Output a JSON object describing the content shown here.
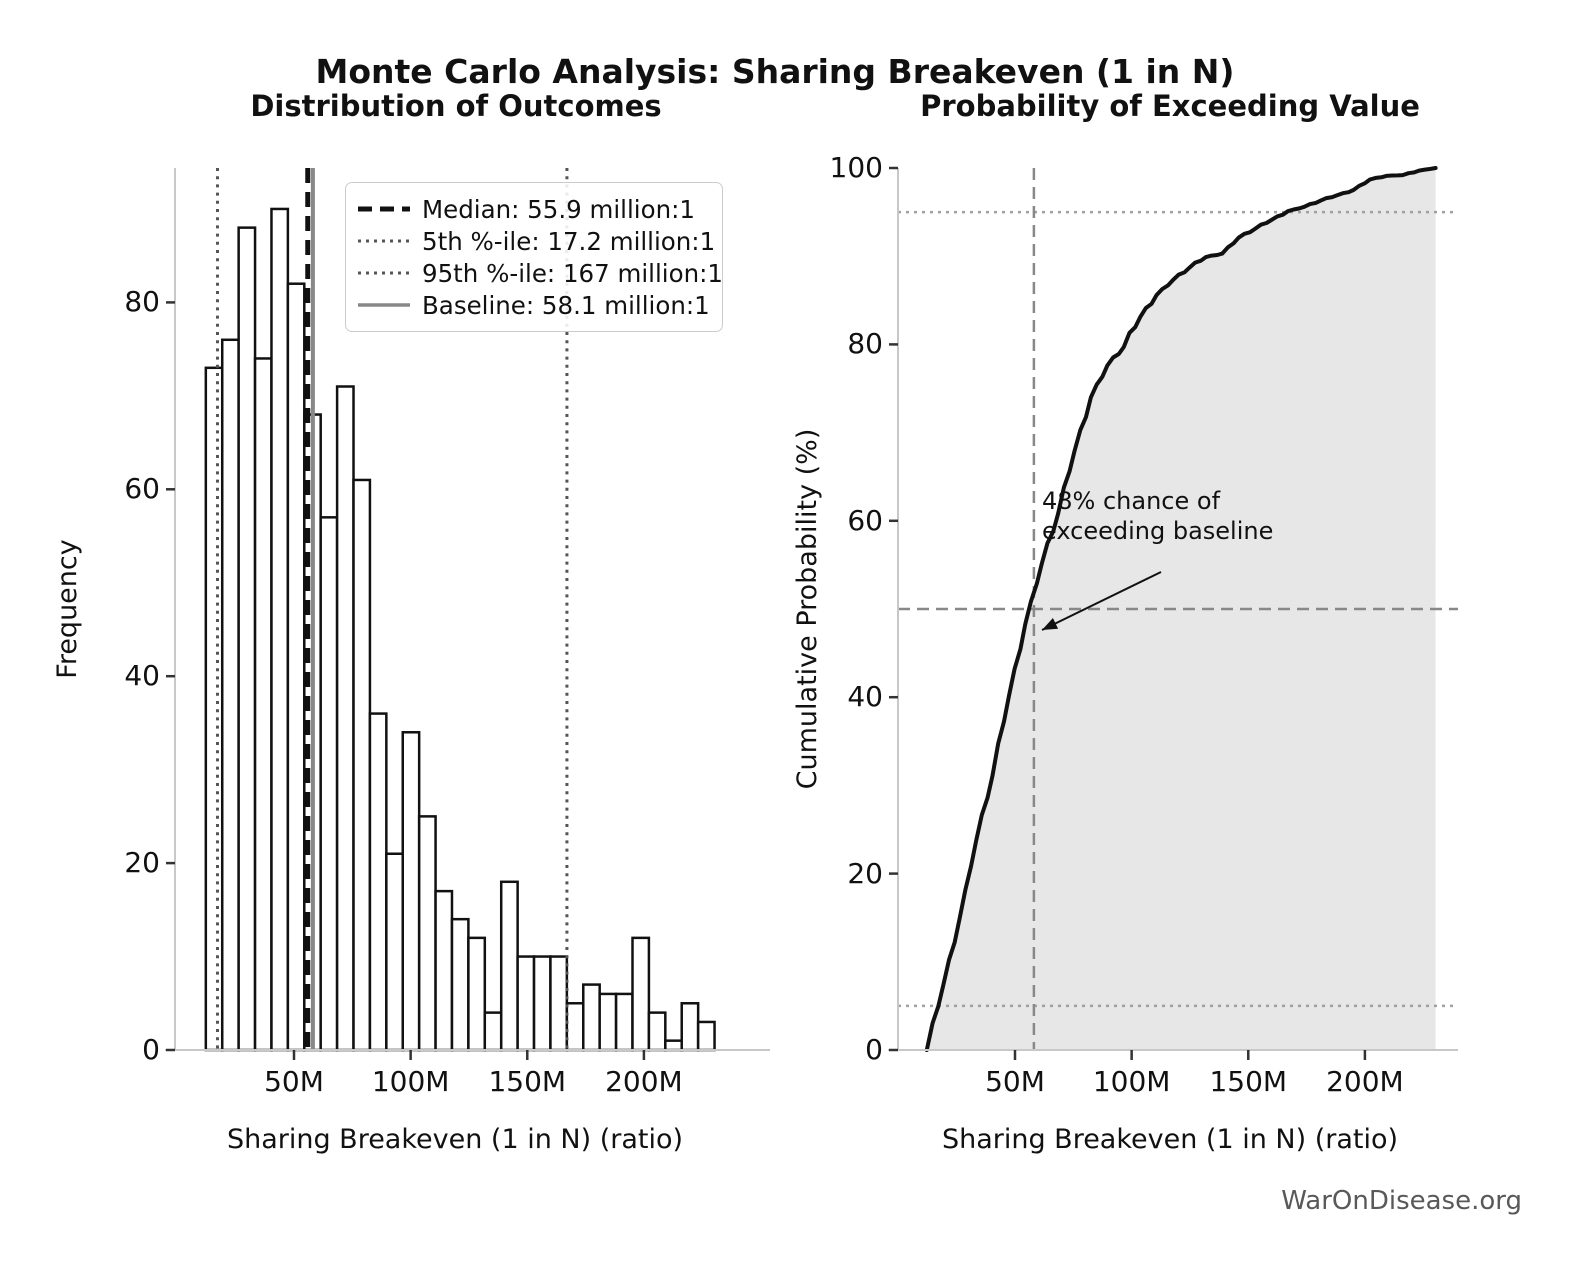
{
  "figure": {
    "title": "Monte Carlo Analysis: Sharing Breakeven (1 in N)",
    "watermark": "WarOnDisease.org"
  },
  "colors": {
    "background": "#ffffff",
    "bar_fill": "#ffffff",
    "bar_edge": "#111111",
    "median_line": "#111111",
    "percentile_line": "#555555",
    "baseline_line": "#888888",
    "cdf_line": "#111111",
    "cdf_fill": "#e7e7e7",
    "crosshair_dashed": "#888888",
    "dotted_reference": "#a0a0a0",
    "spine": "#c8c8c8",
    "tick": "#333333",
    "watermark_text": "#595959"
  },
  "chart_data": [
    {
      "type": "bar",
      "variant": "histogram",
      "title": "Distribution of Outcomes",
      "xlabel": "Sharing Breakeven (1 in N) (ratio)",
      "ylabel": "Frequency",
      "n_samples": 1000,
      "bin_start_millions": 12.2,
      "bin_width_millions": 7.035,
      "counts": [
        73,
        76,
        88,
        74,
        90,
        82,
        68,
        57,
        71,
        61,
        36,
        21,
        34,
        25,
        17,
        14,
        12,
        4,
        18,
        10,
        10,
        10,
        5,
        7,
        6,
        6,
        12,
        4,
        1,
        5,
        3
      ],
      "xticks": [
        {
          "value": 50,
          "label": "50M"
        },
        {
          "value": 100,
          "label": "100M"
        },
        {
          "value": 150,
          "label": "150M"
        },
        {
          "value": 200,
          "label": "200M"
        }
      ],
      "yticks": [
        0,
        20,
        40,
        60,
        80
      ],
      "xlim_millions": [
        -1,
        254
      ],
      "ylim": [
        0,
        94.5
      ],
      "grid": false,
      "reference_lines": {
        "median_millions": 55.9,
        "p5_millions": 17.2,
        "p95_millions": 167,
        "baseline_millions": 58.1
      },
      "legend": {
        "position": "upper right",
        "entries": [
          {
            "style": "dashed-black",
            "label": "Median: 55.9 million:1"
          },
          {
            "style": "dotted-gray",
            "label": "5th %-ile: 17.2 million:1"
          },
          {
            "style": "dotted-gray",
            "label": "95th %-ile: 167 million:1"
          },
          {
            "style": "solid-gray",
            "label": "Baseline: 58.1 million:1"
          }
        ]
      }
    },
    {
      "type": "area",
      "variant": "empirical-cdf",
      "title": "Probability of Exceeding Value",
      "xlabel": "Sharing Breakeven (1 in N) (ratio)",
      "ylabel": "Cumulative Probability (%)",
      "x_bin_start_millions": 12.2,
      "x_bin_width_millions": 7.035,
      "cumulative_percent_at_bin_edges": [
        0,
        7.3,
        14.9,
        23.7,
        31.1,
        40.1,
        48.3,
        55.1,
        60.8,
        67.9,
        74.0,
        77.6,
        79.7,
        83.1,
        85.6,
        87.3,
        88.7,
        89.9,
        90.3,
        92.1,
        93.1,
        94.1,
        95.1,
        95.6,
        96.3,
        96.9,
        97.5,
        98.7,
        99.1,
        99.2,
        99.7,
        100.0
      ],
      "xticks": [
        {
          "value": 50,
          "label": "50M"
        },
        {
          "value": 100,
          "label": "100M"
        },
        {
          "value": 150,
          "label": "150M"
        },
        {
          "value": 200,
          "label": "200M"
        }
      ],
      "yticks": [
        0,
        20,
        40,
        60,
        80,
        100
      ],
      "ylim": [
        0,
        100
      ],
      "grid": false,
      "legend_position": "none",
      "reference_lines": {
        "horizontal_percent": 50,
        "vertical_baseline_millions": 58.1,
        "dotted_percents": [
          5,
          95
        ]
      },
      "annotation": {
        "line1": "48% chance of",
        "line2": "exceeding baseline",
        "exceed_percent": 48
      }
    }
  ]
}
